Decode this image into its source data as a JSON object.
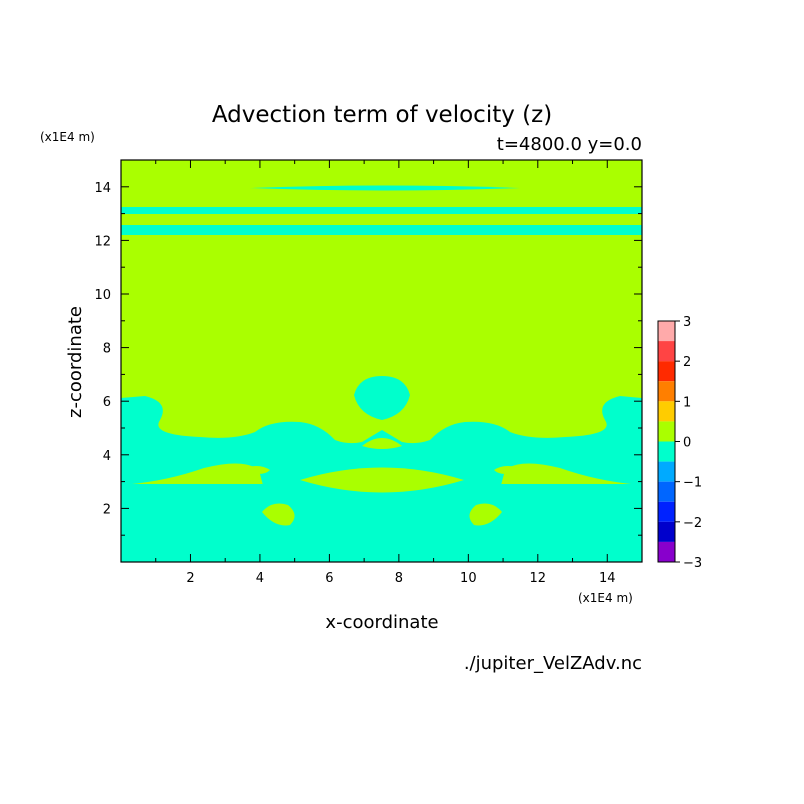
{
  "chart_data": {
    "type": "heatmap",
    "title": "Advection term of velocity (z)",
    "subtitle": "t=4800.0 y=0.0",
    "xlabel": "x-coordinate",
    "ylabel": "z-coordinate",
    "x_unit": "(x1E4 m)",
    "y_unit": "(x1E4 m)",
    "xlim": [
      0,
      15
    ],
    "ylim": [
      0,
      15
    ],
    "x_ticks": [
      2,
      4,
      6,
      8,
      10,
      12,
      14
    ],
    "y_ticks": [
      2,
      4,
      6,
      8,
      10,
      12,
      14
    ],
    "background_level": 0,
    "regions_level_minus": -0.5,
    "colorbar": {
      "ticks": [
        "3",
        "2",
        "1",
        "0",
        "−1",
        "−2",
        "−3"
      ],
      "tick_values": [
        3,
        2,
        1,
        0,
        -1,
        -2,
        -3
      ],
      "levels": [
        {
          "lo": 2.5,
          "hi": 3.0,
          "color": "#ffaaaa"
        },
        {
          "lo": 2.0,
          "hi": 2.5,
          "color": "#ff4444"
        },
        {
          "lo": 1.5,
          "hi": 2.0,
          "color": "#ff2a00"
        },
        {
          "lo": 1.0,
          "hi": 1.5,
          "color": "#ff7f00"
        },
        {
          "lo": 0.5,
          "hi": 1.0,
          "color": "#ffcc00"
        },
        {
          "lo": 0.0,
          "hi": 0.5,
          "color": "#aaff00"
        },
        {
          "lo": -0.5,
          "hi": 0.0,
          "color": "#00ffcc"
        },
        {
          "lo": -1.0,
          "hi": -0.5,
          "color": "#00aaff"
        },
        {
          "lo": -1.5,
          "hi": -1.0,
          "color": "#0066ff"
        },
        {
          "lo": -2.0,
          "hi": -1.5,
          "color": "#0022ff"
        },
        {
          "lo": -2.5,
          "hi": -2.0,
          "color": "#0000cc"
        },
        {
          "lo": -3.0,
          "hi": -2.5,
          "color": "#8800cc"
        }
      ]
    },
    "colors": {
      "positive_small": "#aaff00",
      "negative_small": "#00ffcc"
    }
  },
  "footer": {
    "filename": "./jupiter_VelZAdv.nc"
  }
}
